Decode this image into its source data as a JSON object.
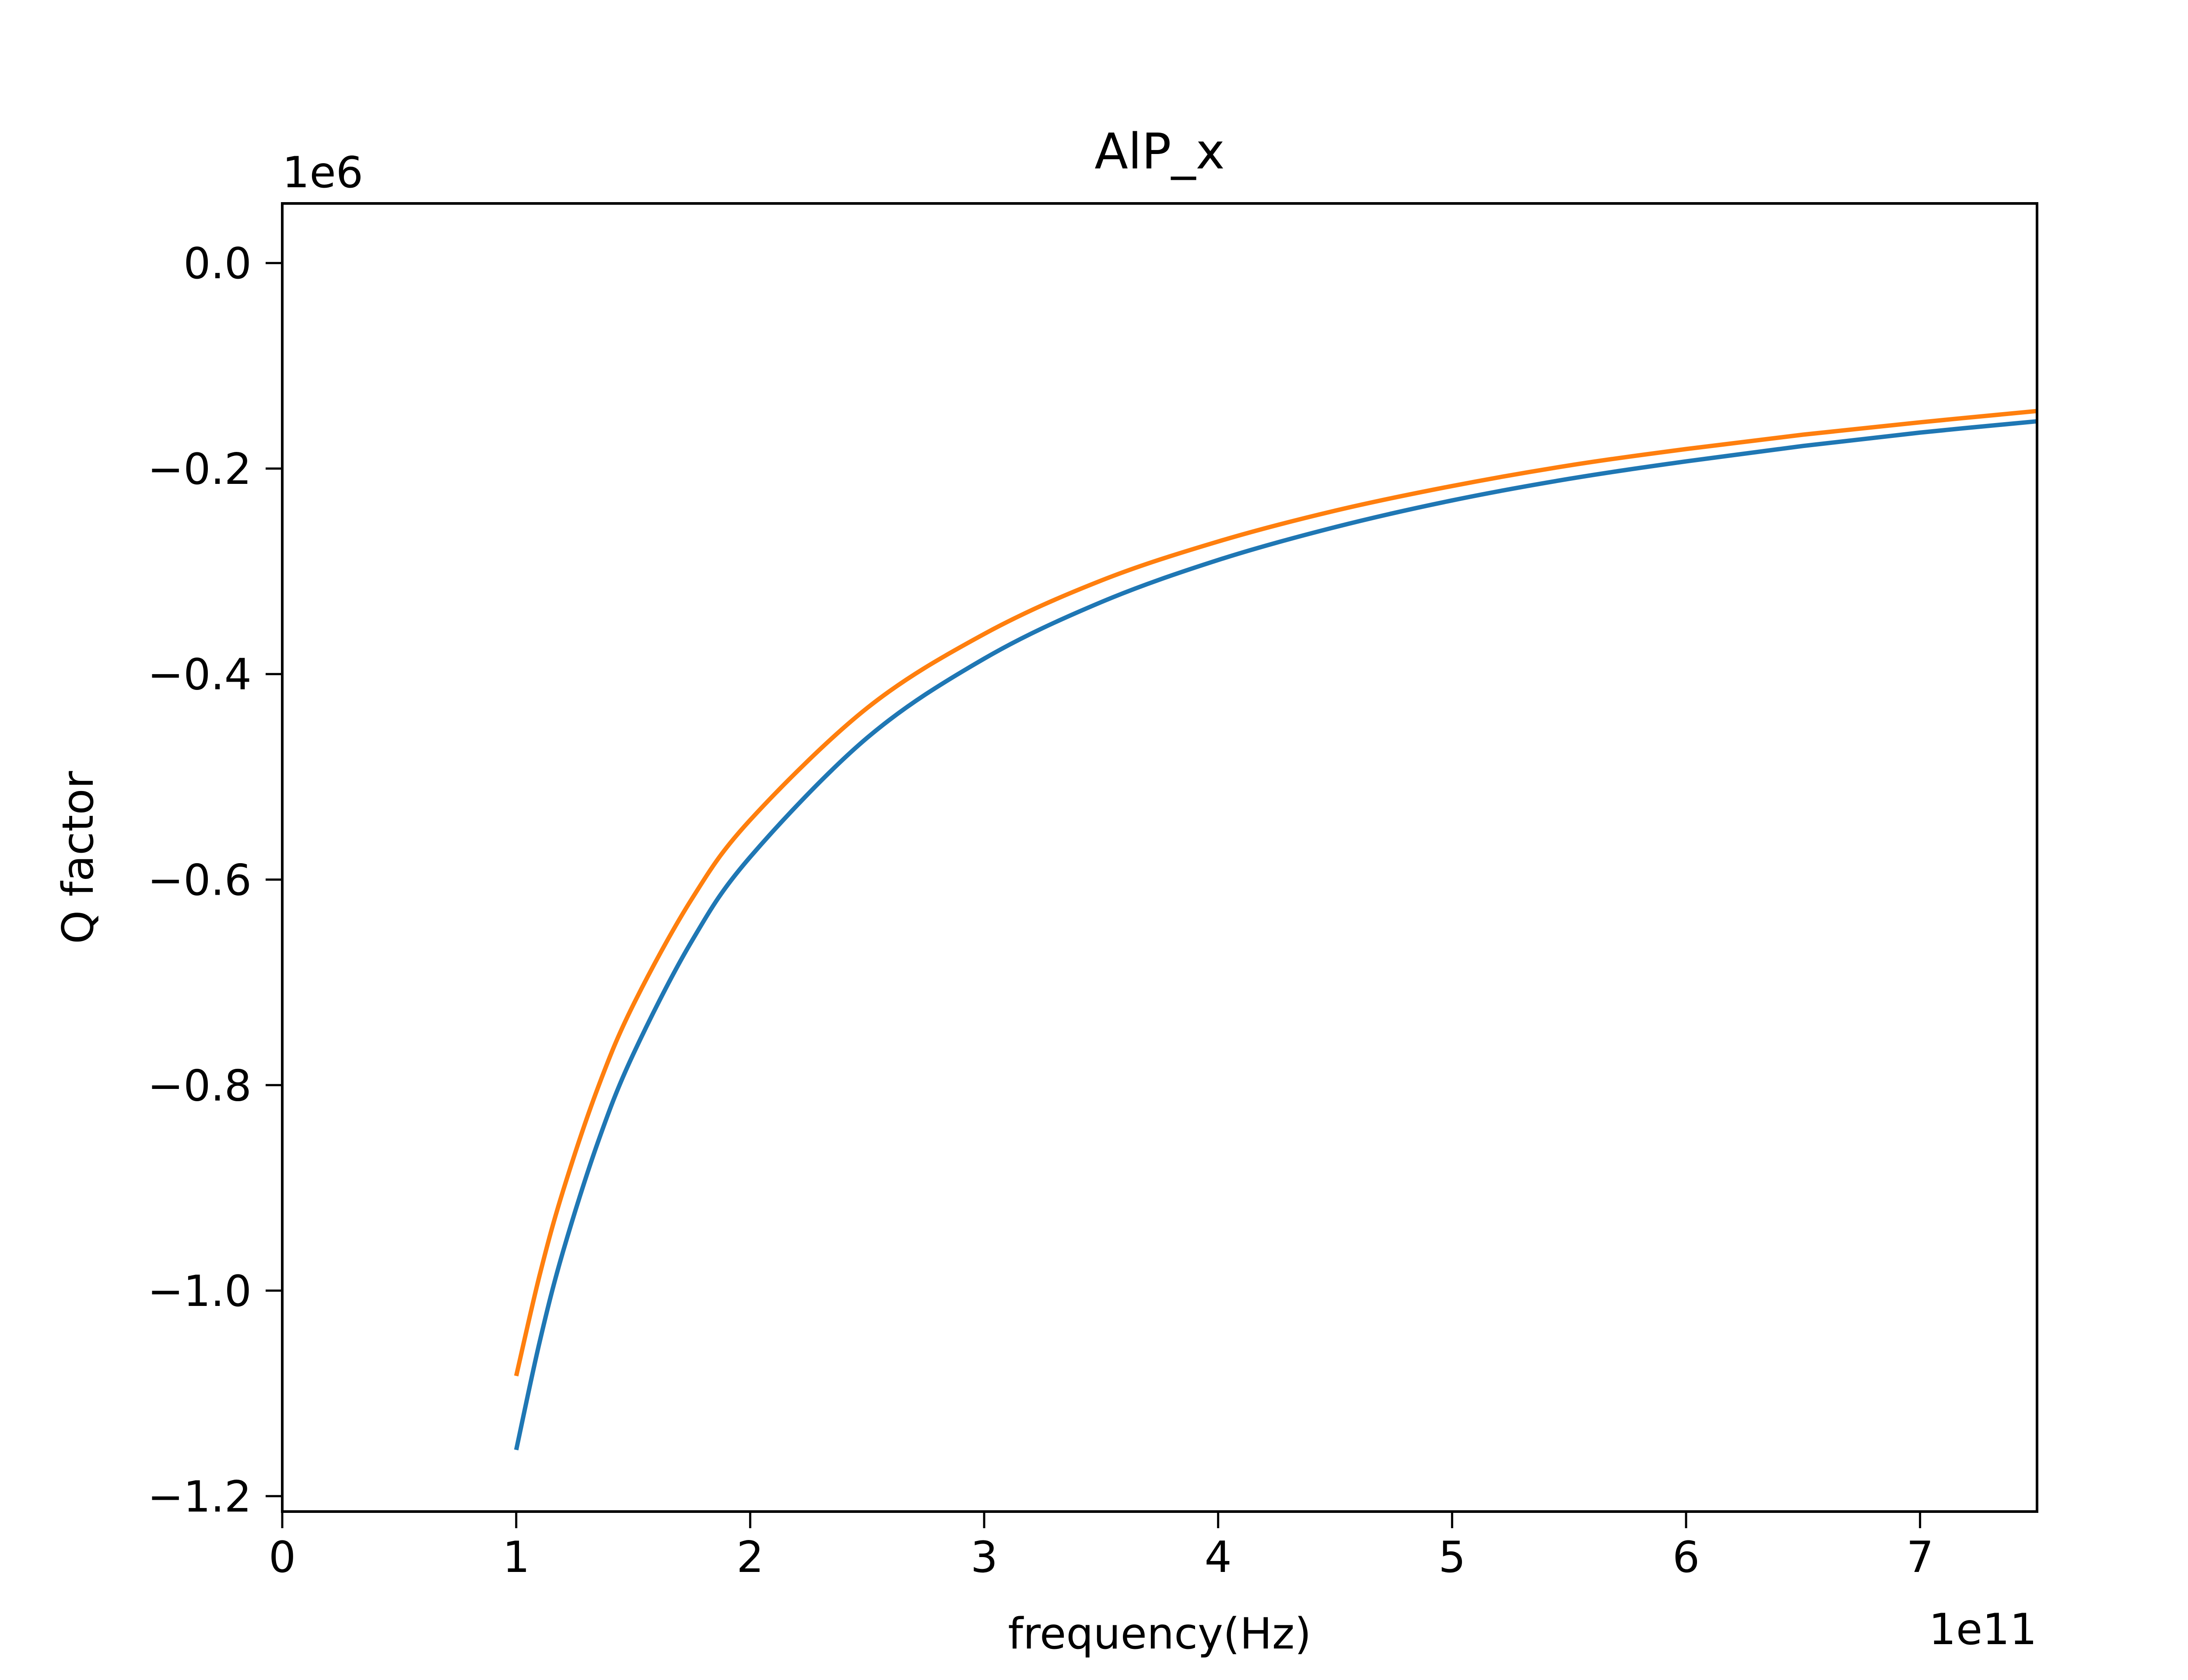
{
  "chart_data": {
    "type": "line",
    "title": "AlP_x",
    "xlabel": "frequency(Hz)",
    "ylabel": "Q factor",
    "x_offset_label": "1e11",
    "y_offset_label": "1e6",
    "xlim": [
      0,
      7.5
    ],
    "ylim": [
      -1.215,
      0.058
    ],
    "x_ticks": [
      0,
      1,
      2,
      3,
      4,
      5,
      6,
      7
    ],
    "x_tick_labels": [
      "0",
      "1",
      "2",
      "3",
      "4",
      "5",
      "6",
      "7"
    ],
    "y_ticks": [
      0.0,
      -0.2,
      -0.4,
      -0.6,
      -0.8,
      -1.0,
      -1.2
    ],
    "y_tick_labels": [
      "0.0",
      "−0.2",
      "−0.4",
      "−0.6",
      "−0.8",
      "−1.0",
      "−1.2"
    ],
    "grid": false,
    "series": [
      {
        "color": "#1f77b4",
        "x": [
          1.0,
          1.1,
          1.2,
          1.35,
          1.5,
          1.75,
          2.0,
          2.5,
          3.0,
          3.5,
          4.0,
          4.5,
          5.0,
          5.5,
          6.0,
          6.5,
          7.0,
          7.5
        ],
        "values": [
          -1.155,
          -1.05,
          -0.962,
          -0.855,
          -0.77,
          -0.66,
          -0.578,
          -0.462,
          -0.385,
          -0.33,
          -0.289,
          -0.257,
          -0.231,
          -0.21,
          -0.193,
          -0.178,
          -0.165,
          -0.154
        ]
      },
      {
        "color": "#ff7f0e",
        "x": [
          1.0,
          1.1,
          1.2,
          1.35,
          1.5,
          1.75,
          2.0,
          2.5,
          3.0,
          3.5,
          4.0,
          4.5,
          5.0,
          5.5,
          6.0,
          6.5,
          7.0,
          7.5
        ],
        "values": [
          -1.083,
          -0.985,
          -0.903,
          -0.802,
          -0.722,
          -0.619,
          -0.542,
          -0.433,
          -0.361,
          -0.309,
          -0.271,
          -0.241,
          -0.217,
          -0.197,
          -0.181,
          -0.167,
          -0.155,
          -0.144
        ]
      }
    ]
  }
}
